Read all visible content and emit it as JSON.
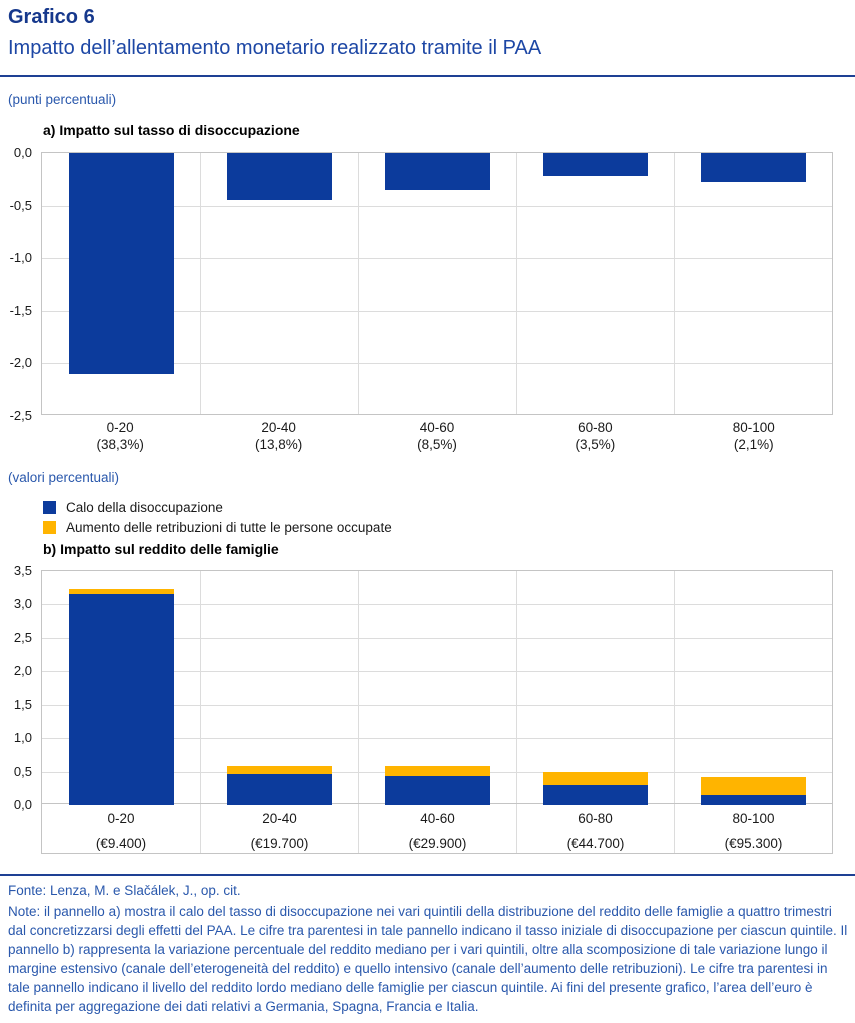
{
  "header": {
    "kicker": "Grafico 6",
    "title": "Impatto dell’allentamento monetario realizzato tramite il PAA"
  },
  "panel_a": {
    "unit_label": "(punti percentuali)",
    "heading": "a) Impatto sul tasso di disoccupazione"
  },
  "panel_b": {
    "unit_label": "(valori percentuali)",
    "heading": "b) Impatto sul reddito delle famiglie"
  },
  "legend": {
    "items": [
      {
        "label": "Calo della disoccupazione",
        "color": "#0c3b9c"
      },
      {
        "label": "Aumento delle retribuzioni di tutte le persone occupate",
        "color": "#ffb400"
      }
    ]
  },
  "footer": {
    "source": "Fonte: Lenza, M. e Slačálek, J., op. cit.",
    "note": "Note: il pannello a) mostra il calo del tasso di disoccupazione nei vari quintili della distribuzione del reddito delle famiglie a quattro trimestri dal concretizzarsi degli effetti del PAA. Le cifre tra parentesi in tale pannello indicano il tasso iniziale di disoccupazione per ciascun quintile. Il pannello b) rappresenta la variazione percentuale del reddito mediano per i vari quintili, oltre alla scomposizione di tale variazione lungo il margine estensivo (canale dell’eterogeneità del reddito) e quello intensivo (canale dell’aumento delle retribuzioni). Le cifre tra parentesi in tale pannello indicano il livello del reddito lordo mediano delle famiglie per ciascun quintile. Ai fini del presente grafico, l’area dell’euro è definita per aggregazione dei dati relativi a Germania, Spagna, Francia e Italia."
  },
  "chart_data": [
    {
      "type": "bar",
      "panel": "a",
      "title": "a) Impatto sul tasso di disoccupazione",
      "unit": "punti percentuali",
      "categories": [
        "0-20",
        "20-40",
        "40-60",
        "60-80",
        "80-100"
      ],
      "category_sublabels": [
        "(38,3%)",
        "(13,8%)",
        "(8,5%)",
        "(3,5%)",
        "(2,1%)"
      ],
      "values": [
        -2.1,
        -0.45,
        -0.35,
        -0.22,
        -0.28
      ],
      "xlabel": "",
      "ylabel": "",
      "ylim": [
        -2.5,
        0
      ],
      "ytick_step": 0.5,
      "ytick_labels": [
        "0,0",
        "-0,5",
        "-1,0",
        "-1,5",
        "-2,0",
        "-2,5"
      ],
      "grid": true,
      "legend_position": "none",
      "bar_color": "#0c3b9c"
    },
    {
      "type": "bar",
      "subtype": "stacked",
      "panel": "b",
      "title": "b) Impatto sul reddito delle famiglie",
      "unit": "valori percentuali",
      "categories": [
        "0-20",
        "20-40",
        "40-60",
        "60-80",
        "80-100"
      ],
      "category_sublabels": [
        "(€9.400)",
        "(€19.700)",
        "(€29.900)",
        "(€44.700)",
        "(€95.300)"
      ],
      "series": [
        {
          "name": "Calo della disoccupazione",
          "color": "#0c3b9c",
          "values": [
            3.15,
            0.47,
            0.43,
            0.3,
            0.15
          ]
        },
        {
          "name": "Aumento delle retribuzioni di tutte le persone occupate",
          "color": "#ffb400",
          "values": [
            0.08,
            0.11,
            0.15,
            0.19,
            0.27
          ]
        }
      ],
      "totals": [
        3.23,
        0.58,
        0.58,
        0.49,
        0.42
      ],
      "xlabel": "",
      "ylabel": "",
      "ylim": [
        0,
        3.5
      ],
      "ytick_step": 0.5,
      "ytick_labels": [
        "3,5",
        "3,0",
        "2,5",
        "2,0",
        "1,5",
        "1,0",
        "0,5",
        "0,0"
      ],
      "grid": true,
      "legend_position": "above"
    }
  ]
}
